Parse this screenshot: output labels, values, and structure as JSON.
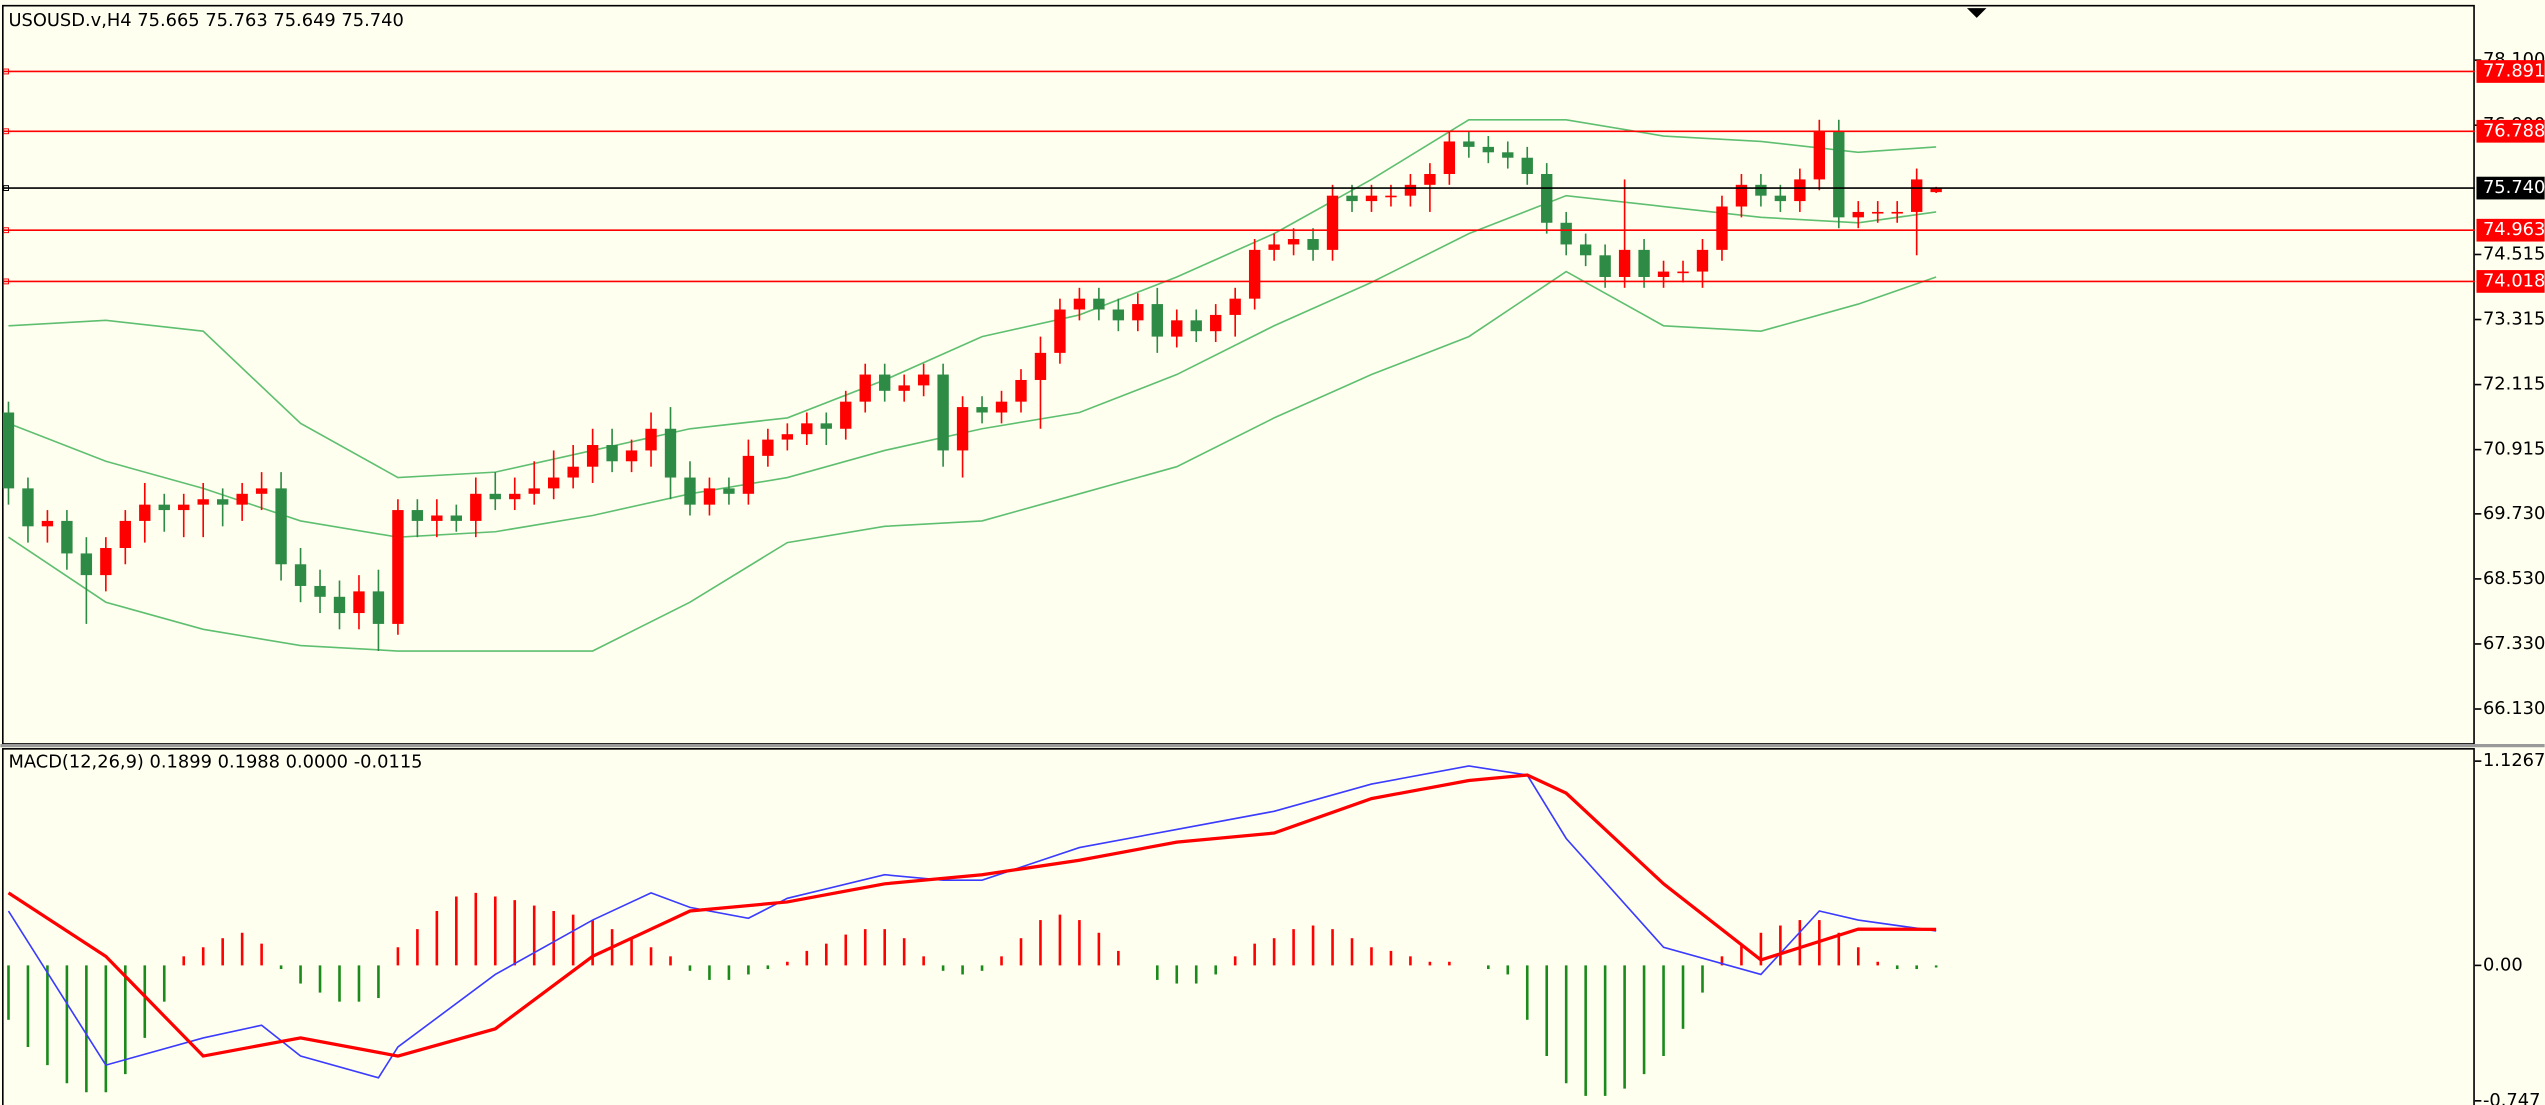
{
  "chart_data": [
    {
      "type": "candlestick",
      "title": "USOUSD.v,H4  75.665 75.763 75.649 75.740",
      "up_color": "#ff0000",
      "down_color": "#2e8b45",
      "open": [
        71.6,
        70.2,
        69.5,
        69.6,
        69.0,
        68.6,
        69.1,
        69.6,
        69.9,
        69.8,
        69.9,
        70.0,
        69.9,
        70.1,
        70.2,
        68.8,
        68.4,
        68.2,
        67.9,
        68.3,
        67.7,
        69.8,
        69.6,
        69.7,
        69.6,
        70.1,
        70.0,
        70.1,
        70.2,
        70.4,
        70.6,
        71.0,
        70.7,
        70.9,
        71.3,
        70.4,
        69.9,
        70.2,
        70.1,
        70.8,
        71.1,
        71.2,
        71.4,
        71.3,
        71.8,
        72.3,
        72.0,
        72.1,
        72.3,
        70.9,
        71.7,
        71.6,
        71.8,
        72.2,
        72.7,
        73.5,
        73.7,
        73.5,
        73.3,
        73.6,
        73.0,
        73.3,
        73.1,
        73.4,
        73.7,
        74.6,
        74.7,
        74.8,
        74.6,
        75.6,
        75.5,
        75.6,
        75.6,
        75.8,
        76.0,
        76.6,
        76.5,
        76.4,
        76.3,
        76.0,
        75.1,
        74.7,
        74.5,
        74.1,
        74.6,
        74.1,
        74.2,
        74.2,
        74.6,
        75.4,
        75.8,
        75.6,
        75.5,
        75.9,
        76.8,
        75.2,
        75.3,
        75.3,
        75.3,
        75.665
      ],
      "high": [
        71.8,
        70.4,
        69.8,
        69.8,
        69.3,
        69.3,
        69.8,
        70.3,
        70.1,
        70.1,
        70.3,
        70.2,
        70.3,
        70.5,
        70.5,
        69.1,
        68.7,
        68.5,
        68.6,
        68.7,
        70.0,
        70.0,
        70.0,
        69.9,
        70.4,
        70.5,
        70.4,
        70.7,
        70.9,
        71.0,
        71.3,
        71.3,
        71.1,
        71.6,
        71.7,
        70.7,
        70.4,
        70.4,
        71.1,
        71.3,
        71.4,
        71.6,
        71.6,
        72.0,
        72.5,
        72.5,
        72.3,
        72.5,
        72.5,
        71.9,
        71.9,
        72.0,
        72.4,
        73.0,
        73.7,
        73.9,
        73.9,
        73.7,
        73.8,
        73.9,
        73.5,
        73.5,
        73.6,
        73.9,
        74.8,
        74.9,
        75.0,
        75.0,
        75.8,
        75.8,
        75.8,
        75.8,
        76.0,
        76.2,
        76.8,
        76.8,
        76.7,
        76.6,
        76.5,
        76.2,
        75.3,
        74.9,
        74.7,
        75.9,
        74.8,
        74.4,
        74.4,
        74.8,
        75.6,
        76.0,
        76.0,
        75.8,
        76.1,
        77.0,
        77.0,
        75.5,
        75.5,
        75.5,
        76.1,
        75.763
      ],
      "low": [
        69.9,
        69.2,
        69.2,
        68.7,
        67.7,
        68.3,
        68.8,
        69.2,
        69.4,
        69.3,
        69.3,
        69.5,
        69.6,
        69.8,
        68.5,
        68.1,
        67.9,
        67.6,
        67.6,
        67.2,
        67.5,
        69.3,
        69.3,
        69.4,
        69.3,
        69.8,
        69.8,
        69.9,
        70.0,
        70.2,
        70.3,
        70.5,
        70.5,
        70.6,
        70.0,
        69.7,
        69.7,
        69.9,
        69.9,
        70.6,
        70.9,
        71.0,
        71.0,
        71.1,
        71.6,
        71.8,
        71.8,
        71.9,
        70.6,
        70.4,
        71.4,
        71.4,
        71.6,
        71.3,
        72.5,
        73.3,
        73.3,
        73.1,
        73.1,
        72.7,
        72.8,
        72.9,
        72.9,
        73.0,
        73.5,
        74.4,
        74.5,
        74.4,
        74.4,
        75.3,
        75.3,
        75.4,
        75.4,
        75.3,
        75.8,
        76.3,
        76.2,
        76.1,
        75.8,
        74.9,
        74.5,
        74.3,
        73.9,
        73.9,
        73.9,
        73.9,
        74.0,
        73.9,
        74.4,
        75.2,
        75.4,
        75.3,
        75.3,
        75.7,
        75.0,
        75.0,
        75.1,
        75.1,
        74.5,
        75.649
      ],
      "close": [
        70.2,
        69.5,
        69.6,
        69.0,
        68.6,
        69.1,
        69.6,
        69.9,
        69.8,
        69.9,
        70.0,
        69.9,
        70.1,
        70.2,
        68.8,
        68.4,
        68.2,
        67.9,
        68.3,
        67.7,
        69.8,
        69.6,
        69.7,
        69.6,
        70.1,
        70.0,
        70.1,
        70.2,
        70.4,
        70.6,
        71.0,
        70.7,
        70.9,
        71.3,
        70.4,
        69.9,
        70.2,
        70.1,
        70.8,
        71.1,
        71.2,
        71.4,
        71.3,
        71.8,
        72.3,
        72.0,
        72.1,
        72.3,
        70.9,
        71.7,
        71.6,
        71.8,
        72.2,
        72.7,
        73.5,
        73.7,
        73.5,
        73.3,
        73.6,
        73.0,
        73.3,
        73.1,
        73.4,
        73.7,
        74.6,
        74.7,
        74.8,
        74.6,
        75.6,
        75.5,
        75.6,
        75.6,
        75.8,
        76.0,
        76.6,
        76.5,
        76.4,
        76.3,
        76.0,
        75.1,
        74.7,
        74.5,
        74.1,
        74.6,
        74.1,
        74.2,
        74.2,
        74.6,
        75.4,
        75.8,
        75.6,
        75.5,
        75.9,
        76.8,
        75.2,
        75.3,
        75.3,
        75.3,
        75.9,
        75.74
      ],
      "series": [
        {
          "color": "#5fbf70",
          "x": [
            0,
            5,
            10,
            15,
            20,
            25,
            30,
            35,
            40,
            45,
            50,
            55,
            60,
            65,
            70,
            75,
            80,
            85,
            90,
            95,
            99
          ],
          "values": [
            73.2,
            73.3,
            73.1,
            71.4,
            70.4,
            70.5,
            70.9,
            71.3,
            71.5,
            72.2,
            73.0,
            73.4,
            74.1,
            74.9,
            75.9,
            77.0,
            77.0,
            76.7,
            76.6,
            76.4,
            76.5
          ]
        },
        {
          "color": "#5fbf70",
          "x": [
            0,
            5,
            10,
            15,
            20,
            25,
            30,
            35,
            40,
            45,
            50,
            55,
            60,
            65,
            70,
            75,
            80,
            85,
            90,
            95,
            99
          ],
          "values": [
            71.4,
            70.7,
            70.2,
            69.6,
            69.3,
            69.4,
            69.7,
            70.1,
            70.4,
            70.9,
            71.3,
            71.6,
            72.3,
            73.2,
            74.0,
            74.9,
            75.6,
            75.4,
            75.2,
            75.1,
            75.3
          ]
        },
        {
          "color": "#5fbf70",
          "x": [
            0,
            5,
            10,
            15,
            20,
            25,
            30,
            35,
            40,
            45,
            50,
            55,
            60,
            65,
            70,
            75,
            80,
            85,
            90,
            95,
            99
          ],
          "values": [
            69.3,
            68.1,
            67.6,
            67.3,
            67.2,
            67.2,
            67.2,
            68.1,
            69.2,
            69.5,
            69.6,
            70.1,
            70.6,
            71.5,
            72.3,
            73.0,
            74.2,
            73.2,
            73.1,
            73.6,
            74.1
          ]
        }
      ],
      "levels": [
        {
          "value": 77.891,
          "color": "#ff0000"
        },
        {
          "value": 76.788,
          "color": "#ff0000"
        },
        {
          "value": 75.74,
          "label": "75.740",
          "color": "#000000"
        },
        {
          "value": 74.963,
          "color": "#ff0000"
        },
        {
          "value": 74.018,
          "color": "#ff0000"
        }
      ],
      "ylim": [
        65.5,
        79.06
      ],
      "yticks": [
        {
          "value": 78.1,
          "label": "78.100"
        },
        {
          "value": 76.9,
          "label": "76.900"
        },
        74.515,
        73.315,
        72.115,
        70.915,
        {
          "value": 69.73,
          "label": "69.730"
        },
        {
          "value": 68.53,
          "label": "68.530"
        },
        {
          "value": 67.33,
          "label": "67.330"
        },
        {
          "value": 66.13,
          "label": "66.130"
        }
      ]
    },
    {
      "type": "macd",
      "title": "MACD(12,26,9) 0.1899 0.1988 0.0000 -0.0115",
      "up_color": "#ff0000",
      "down_color": "#1a8a1a",
      "values": [
        -0.3,
        -0.45,
        -0.55,
        -0.65,
        -0.7,
        -0.7,
        -0.6,
        -0.4,
        -0.2,
        0.05,
        0.1,
        0.15,
        0.18,
        0.12,
        -0.02,
        -0.1,
        -0.15,
        -0.2,
        -0.2,
        -0.18,
        0.1,
        0.2,
        0.3,
        0.38,
        0.4,
        0.38,
        0.36,
        0.33,
        0.3,
        0.28,
        0.25,
        0.2,
        0.15,
        0.1,
        0.05,
        -0.03,
        -0.08,
        -0.08,
        -0.05,
        -0.02,
        0.02,
        0.08,
        0.12,
        0.17,
        0.2,
        0.2,
        0.15,
        0.05,
        -0.03,
        -0.05,
        -0.03,
        0.05,
        0.15,
        0.25,
        0.28,
        0.25,
        0.18,
        0.08,
        0,
        -0.08,
        -0.1,
        -0.1,
        -0.05,
        0.05,
        0.12,
        0.15,
        0.2,
        0.22,
        0.2,
        0.15,
        0.1,
        0.08,
        0.05,
        0.02,
        0.02,
        0,
        -0.02,
        -0.05,
        -0.3,
        -0.5,
        -0.65,
        -0.72,
        -0.72,
        -0.68,
        -0.6,
        -0.5,
        -0.35,
        -0.15,
        0.05,
        0.12,
        0.18,
        0.22,
        0.25,
        0.25,
        0.18,
        0.1,
        0.02,
        -0.02,
        -0.02,
        -0.0115
      ],
      "series": [
        {
          "color": "#3b3bff",
          "x": [
            0,
            5,
            10,
            13,
            15,
            19,
            20,
            25,
            30,
            33,
            35,
            38,
            40,
            45,
            48,
            50,
            55,
            60,
            65,
            70,
            75,
            78,
            80,
            85,
            90,
            93,
            95,
            99
          ],
          "values": [
            0.3,
            -0.55,
            -0.4,
            -0.33,
            -0.5,
            -0.62,
            -0.45,
            -0.05,
            0.25,
            0.4,
            0.32,
            0.26,
            0.37,
            0.5,
            0.47,
            0.47,
            0.65,
            0.75,
            0.85,
            1.0,
            1.1,
            1.05,
            0.7,
            0.1,
            -0.05,
            0.3,
            0.25,
            0.1899
          ]
        },
        {
          "color": "#ff0000",
          "x": [
            0,
            5,
            10,
            15,
            20,
            25,
            30,
            35,
            40,
            45,
            50,
            55,
            60,
            65,
            70,
            75,
            78,
            80,
            85,
            90,
            95,
            99
          ],
          "values": [
            0.4,
            0.05,
            -0.5,
            -0.4,
            -0.5,
            -0.35,
            0.05,
            0.3,
            0.35,
            0.45,
            0.5,
            0.58,
            0.68,
            0.73,
            0.92,
            1.02,
            1.05,
            0.95,
            0.45,
            0.03,
            0.2,
            0.1988
          ]
        }
      ],
      "ylim": [
        -0.77,
        1.19
      ],
      "yticks": [
        1.1267,
        {
          "value": 0,
          "label": "0.00"
        },
        -0.747
      ]
    }
  ]
}
